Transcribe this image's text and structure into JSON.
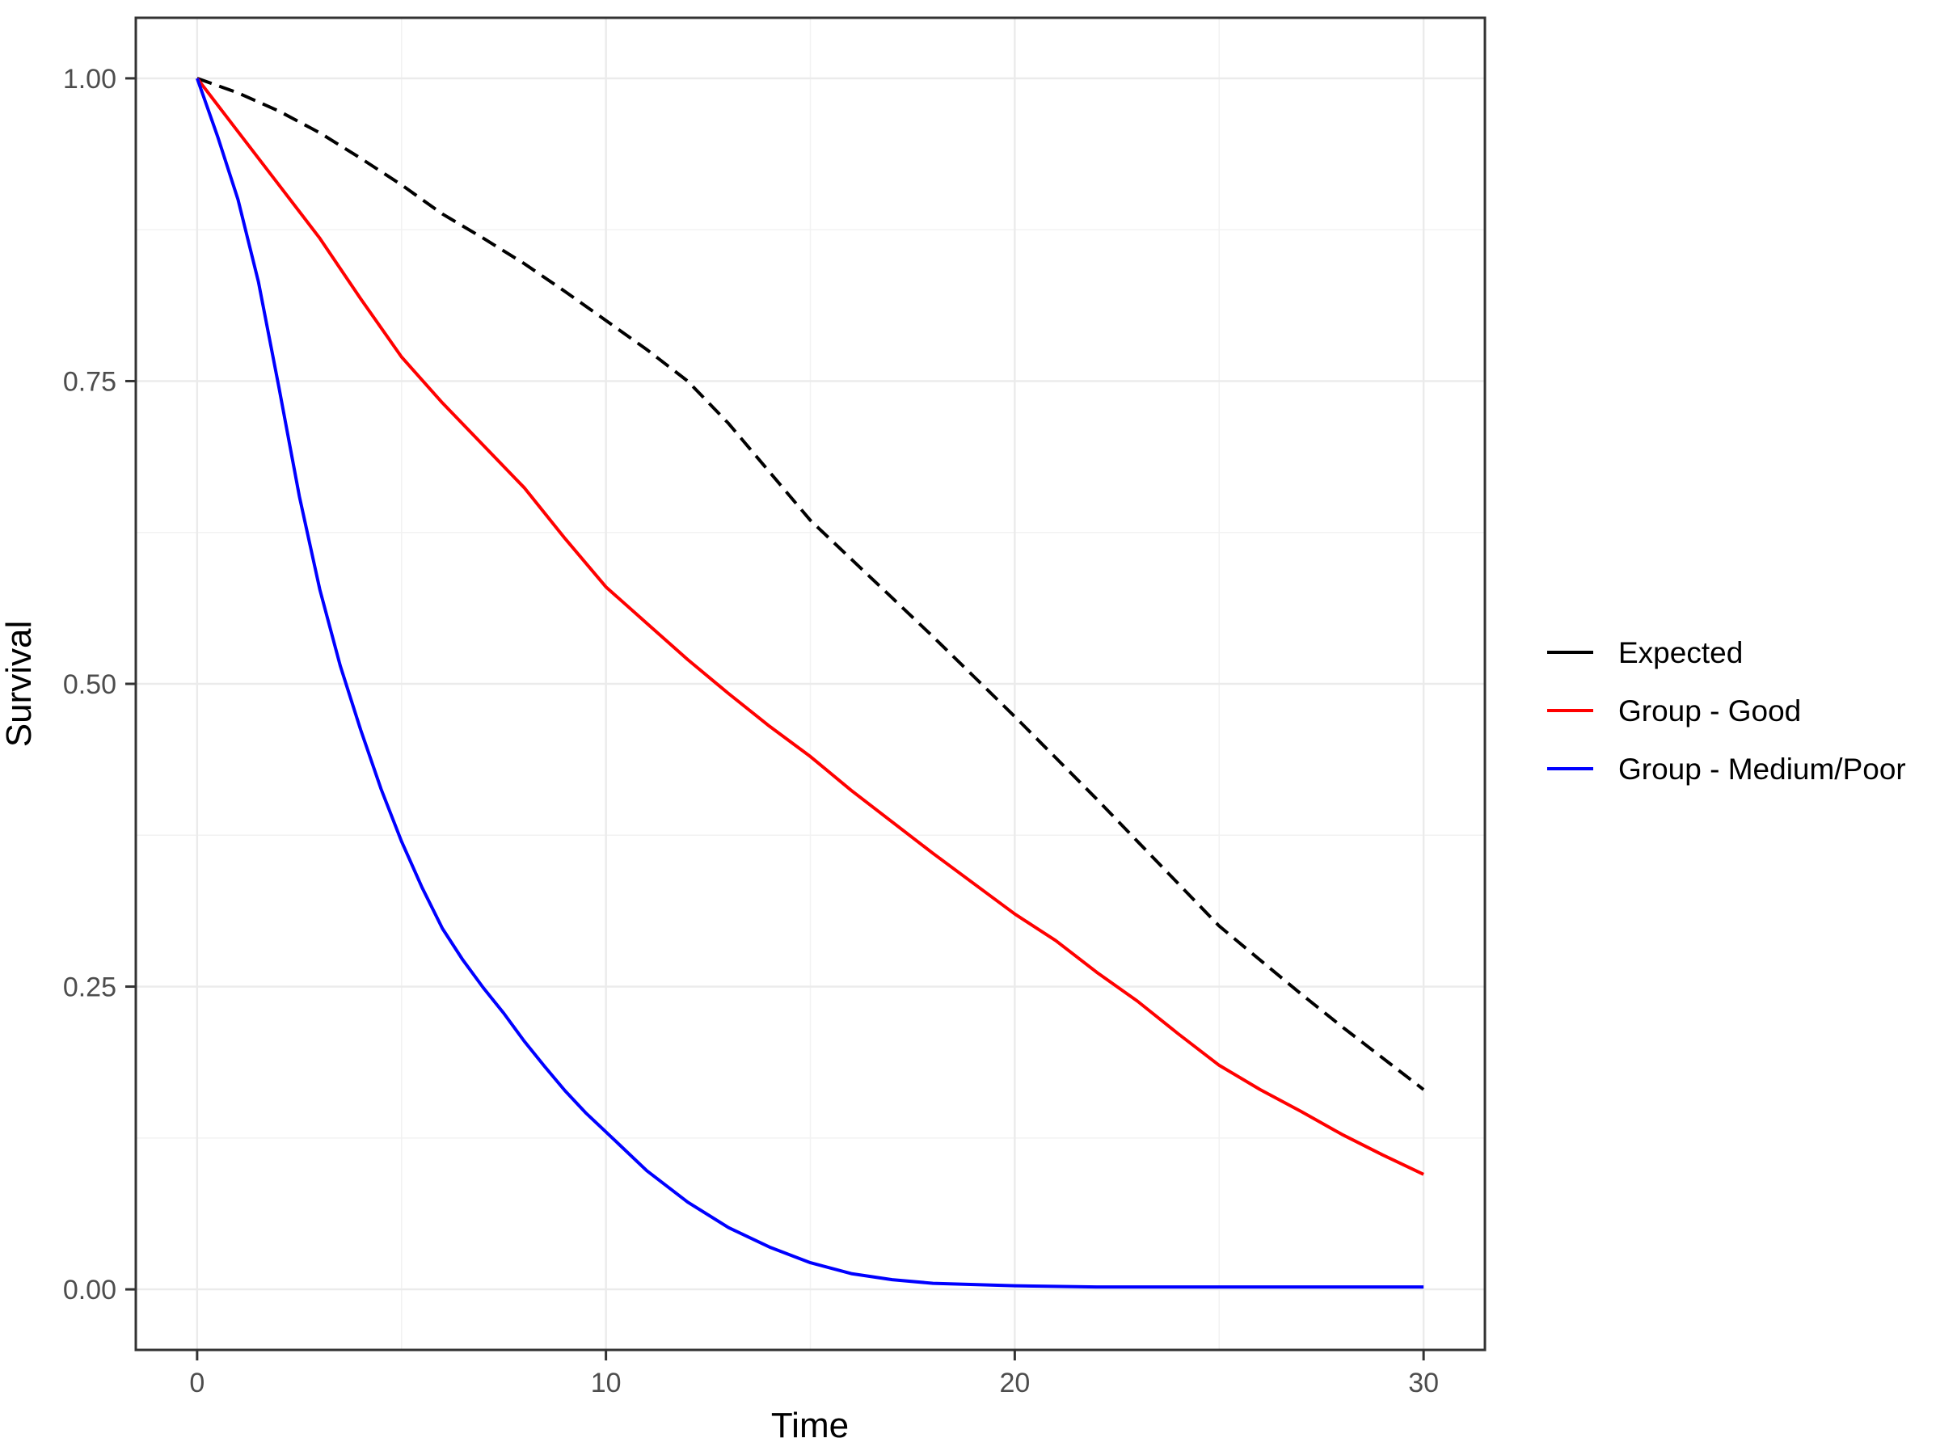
{
  "chart_data": {
    "type": "line",
    "title": "",
    "xlabel": "Time",
    "ylabel": "Survival",
    "grid": true,
    "legend_position": "right",
    "x_axis": {
      "range": [
        -1.5,
        31.5
      ],
      "ticks": [
        0,
        10,
        20,
        30
      ],
      "tick_labels": [
        "0",
        "10",
        "20",
        "30"
      ],
      "minor_ticks": [
        5,
        15,
        25
      ]
    },
    "y_axis": {
      "range": [
        -0.05,
        1.05
      ],
      "ticks": [
        0,
        0.25,
        0.5,
        0.75,
        1.0
      ],
      "tick_labels": [
        "0.00",
        "0.25",
        "0.50",
        "0.75",
        "1.00"
      ],
      "minor_ticks": [
        0.125,
        0.375,
        0.625,
        0.875
      ]
    },
    "series": [
      {
        "name": "Expected",
        "color": "#000000",
        "linetype": "dashed",
        "points": [
          [
            0,
            1.0
          ],
          [
            1,
            0.988
          ],
          [
            2,
            0.973
          ],
          [
            3,
            0.955
          ],
          [
            4,
            0.934
          ],
          [
            5,
            0.912
          ],
          [
            6,
            0.888
          ],
          [
            7,
            0.868
          ],
          [
            8,
            0.847
          ],
          [
            9,
            0.824
          ],
          [
            10,
            0.8
          ],
          [
            11,
            0.776
          ],
          [
            12,
            0.75
          ],
          [
            13,
            0.715
          ],
          [
            14,
            0.675
          ],
          [
            15,
            0.635
          ],
          [
            16,
            0.603
          ],
          [
            17,
            0.571
          ],
          [
            18,
            0.539
          ],
          [
            19,
            0.506
          ],
          [
            20,
            0.473
          ],
          [
            21,
            0.439
          ],
          [
            22,
            0.405
          ],
          [
            23,
            0.37
          ],
          [
            24,
            0.335
          ],
          [
            25,
            0.3
          ],
          [
            26,
            0.272
          ],
          [
            27,
            0.244
          ],
          [
            28,
            0.217
          ],
          [
            29,
            0.191
          ],
          [
            30,
            0.165
          ]
        ]
      },
      {
        "name": "Group - Good",
        "color": "#FF0000",
        "linetype": "solid",
        "points": [
          [
            0,
            1.0
          ],
          [
            1,
            0.956
          ],
          [
            2,
            0.912
          ],
          [
            3,
            0.868
          ],
          [
            4,
            0.818
          ],
          [
            5,
            0.77
          ],
          [
            6,
            0.732
          ],
          [
            7,
            0.697
          ],
          [
            8,
            0.662
          ],
          [
            9,
            0.62
          ],
          [
            10,
            0.58
          ],
          [
            11,
            0.55
          ],
          [
            12,
            0.52
          ],
          [
            13,
            0.492
          ],
          [
            14,
            0.465
          ],
          [
            15,
            0.44
          ],
          [
            16,
            0.412
          ],
          [
            17,
            0.386
          ],
          [
            18,
            0.36
          ],
          [
            19,
            0.335
          ],
          [
            20,
            0.31
          ],
          [
            21,
            0.288
          ],
          [
            22,
            0.262
          ],
          [
            23,
            0.238
          ],
          [
            24,
            0.211
          ],
          [
            25,
            0.185
          ],
          [
            26,
            0.165
          ],
          [
            27,
            0.147
          ],
          [
            28,
            0.128
          ],
          [
            29,
            0.111
          ],
          [
            30,
            0.095
          ]
        ]
      },
      {
        "name": "Group - Medium/Poor",
        "color": "#0000FF",
        "linetype": "solid",
        "points": [
          [
            0,
            1.0
          ],
          [
            0.5,
            0.952
          ],
          [
            1,
            0.9
          ],
          [
            1.5,
            0.832
          ],
          [
            2,
            0.745
          ],
          [
            2.5,
            0.655
          ],
          [
            3,
            0.578
          ],
          [
            3.5,
            0.515
          ],
          [
            4,
            0.462
          ],
          [
            4.5,
            0.413
          ],
          [
            5,
            0.37
          ],
          [
            5.5,
            0.332
          ],
          [
            6,
            0.298
          ],
          [
            6.5,
            0.272
          ],
          [
            7,
            0.249
          ],
          [
            7.5,
            0.228
          ],
          [
            8,
            0.205
          ],
          [
            8.5,
            0.184
          ],
          [
            9,
            0.164
          ],
          [
            9.5,
            0.146
          ],
          [
            10,
            0.13
          ],
          [
            11,
            0.098
          ],
          [
            12,
            0.072
          ],
          [
            13,
            0.051
          ],
          [
            14,
            0.035
          ],
          [
            15,
            0.022
          ],
          [
            16,
            0.013
          ],
          [
            17,
            0.008
          ],
          [
            18,
            0.005
          ],
          [
            19,
            0.004
          ],
          [
            20,
            0.003
          ],
          [
            22,
            0.002
          ],
          [
            24,
            0.002
          ],
          [
            26,
            0.002
          ],
          [
            28,
            0.002
          ],
          [
            30,
            0.002
          ]
        ]
      }
    ]
  },
  "legend": {
    "items": [
      {
        "label": "Expected"
      },
      {
        "label": "Group - Good"
      },
      {
        "label": "Group - Medium/Poor"
      }
    ]
  },
  "colors": {
    "background": "#FFFFFF",
    "panel_background": "#FFFFFF",
    "grid_major": "#EBEBEB",
    "grid_minor": "#F2F2F2",
    "panel_border": "#333333",
    "tick_mark": "#333333",
    "tick_text": "#4D4D4D",
    "axis_title": "#000000"
  }
}
